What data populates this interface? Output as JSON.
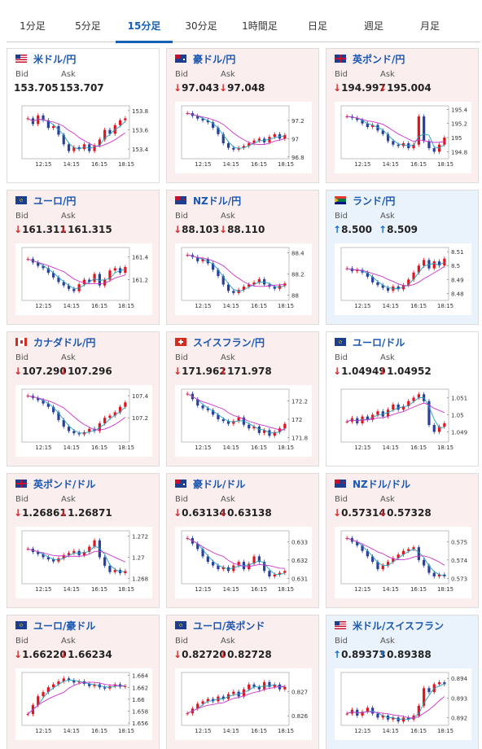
{
  "tabs": [
    {
      "label": "1分足",
      "active": false
    },
    {
      "label": "5分足",
      "active": false
    },
    {
      "label": "15分足",
      "active": true
    },
    {
      "label": "30分足",
      "active": false
    },
    {
      "label": "1時間足",
      "active": false
    },
    {
      "label": "日足",
      "active": false
    },
    {
      "label": "週足",
      "active": false
    },
    {
      "label": "月足",
      "active": false
    }
  ],
  "labels": {
    "bid": "Bid",
    "ask": "Ask"
  },
  "colors": {
    "up_candle": "#2a3f9c",
    "down_candle": "#e0141e",
    "ma_long": "#cc33cc",
    "ma_short": "#20a0c0",
    "arrow_down": "#d32c2c",
    "arrow_up": "#1d6fc5",
    "pair_text": "#1a57b0"
  },
  "cards": [
    {
      "pair": "米ドル/円",
      "flag": "us-jp",
      "bid": "153.705",
      "ask": "153.707",
      "dir": "none",
      "bg": "plain",
      "chart_data": {
        "type": "candlestick",
        "x_ticks": [
          "12:15",
          "14:15",
          "16:15",
          "18:15"
        ],
        "y_ticks": [
          "153.8",
          "153.6",
          "153.4"
        ],
        "ylim": [
          153.3,
          153.85
        ],
        "close": [
          153.72,
          153.66,
          153.75,
          153.7,
          153.62,
          153.64,
          153.55,
          153.45,
          153.38,
          153.42,
          153.4,
          153.45,
          153.38,
          153.44,
          153.5,
          153.6,
          153.56,
          153.65,
          153.7,
          153.72
        ]
      }
    },
    {
      "pair": "豪ドル/円",
      "flag": "au-jp",
      "bid": "97.043",
      "ask": "97.048",
      "dir": "down",
      "bg": "down",
      "chart_data": {
        "type": "candlestick",
        "x_ticks": [
          "12:15",
          "14:15",
          "16:15",
          "18:15"
        ],
        "y_ticks": [
          "97.2",
          "97",
          "96.8"
        ],
        "ylim": [
          96.78,
          97.36
        ],
        "close": [
          97.28,
          97.25,
          97.22,
          97.2,
          97.18,
          97.12,
          97.05,
          96.95,
          96.9,
          96.88,
          96.9,
          96.92,
          96.95,
          96.98,
          97.0,
          96.96,
          97.02,
          97.05,
          97.0,
          97.04
        ]
      }
    },
    {
      "pair": "英ポンド/円",
      "flag": "gb-jp",
      "bid": "194.997",
      "ask": "195.004",
      "dir": "down",
      "bg": "down",
      "chart_data": {
        "type": "candlestick",
        "x_ticks": [
          "12:15",
          "14:15",
          "16:15",
          "18:15"
        ],
        "y_ticks": [
          "195.4",
          "195.2",
          "195",
          "194.8"
        ],
        "ylim": [
          194.7,
          195.45
        ],
        "close": [
          195.3,
          195.28,
          195.25,
          195.2,
          195.15,
          195.18,
          195.1,
          195.05,
          194.95,
          194.9,
          194.88,
          194.92,
          194.85,
          194.9,
          195.3,
          194.95,
          194.85,
          194.8,
          194.9,
          195.0
        ]
      }
    },
    {
      "pair": "ユーロ/円",
      "flag": "eu-jp",
      "bid": "161.311",
      "ask": "161.315",
      "dir": "down",
      "bg": "down",
      "chart_data": {
        "type": "candlestick",
        "x_ticks": [
          "12:15",
          "14:15",
          "16:15",
          "18:15"
        ],
        "y_ticks": [
          "161.4",
          "161.2"
        ],
        "ylim": [
          161.02,
          161.48
        ],
        "close": [
          161.38,
          161.35,
          161.32,
          161.3,
          161.26,
          161.22,
          161.18,
          161.15,
          161.12,
          161.1,
          161.16,
          161.2,
          161.18,
          161.25,
          161.15,
          161.2,
          161.28,
          161.3,
          161.26,
          161.31
        ]
      }
    },
    {
      "pair": "NZドル/円",
      "flag": "nz-jp",
      "bid": "88.103",
      "ask": "88.110",
      "dir": "down",
      "bg": "down",
      "chart_data": {
        "type": "candlestick",
        "x_ticks": [
          "12:15",
          "14:15",
          "16:15",
          "18:15"
        ],
        "y_ticks": [
          "88.4",
          "88.2",
          "88"
        ],
        "ylim": [
          87.95,
          88.45
        ],
        "close": [
          88.38,
          88.36,
          88.32,
          88.34,
          88.3,
          88.24,
          88.18,
          88.1,
          88.04,
          88.02,
          88.05,
          88.08,
          88.1,
          88.12,
          88.15,
          88.1,
          88.08,
          88.06,
          88.09,
          88.11
        ]
      }
    },
    {
      "pair": "ランド/円",
      "flag": "za-jp",
      "bid": "8.500",
      "ask": "8.509",
      "dir": "up",
      "bg": "up",
      "chart_data": {
        "type": "candlestick",
        "x_ticks": [
          "12:15",
          "14:15",
          "16:15",
          "18:15"
        ],
        "y_ticks": [
          "8.51",
          "8.5",
          "8.49",
          "8.48"
        ],
        "ylim": [
          8.475,
          8.513
        ],
        "close": [
          8.498,
          8.496,
          8.497,
          8.495,
          8.492,
          8.488,
          8.486,
          8.484,
          8.482,
          8.485,
          8.483,
          8.486,
          8.49,
          8.495,
          8.5,
          8.504,
          8.498,
          8.503,
          8.5,
          8.505
        ]
      }
    },
    {
      "pair": "カナダドル/円",
      "flag": "ca-jp",
      "bid": "107.290",
      "ask": "107.296",
      "dir": "down",
      "bg": "down",
      "chart_data": {
        "type": "candlestick",
        "x_ticks": [
          "12:15",
          "14:15",
          "16:15",
          "18:15"
        ],
        "y_ticks": [
          "107.4",
          "107.2"
        ],
        "ylim": [
          106.98,
          107.46
        ],
        "close": [
          107.4,
          107.38,
          107.36,
          107.33,
          107.3,
          107.25,
          107.18,
          107.12,
          107.08,
          107.06,
          107.05,
          107.07,
          107.1,
          107.08,
          107.15,
          107.2,
          107.22,
          107.25,
          107.3,
          107.34
        ]
      }
    },
    {
      "pair": "スイスフラン/円",
      "flag": "ch-jp",
      "bid": "171.962",
      "ask": "171.978",
      "dir": "down",
      "bg": "down",
      "chart_data": {
        "type": "candlestick",
        "x_ticks": [
          "12:15",
          "14:15",
          "16:15",
          "18:15"
        ],
        "y_ticks": [
          "172.2",
          "172",
          "171.8"
        ],
        "ylim": [
          171.75,
          172.33
        ],
        "close": [
          172.28,
          172.22,
          172.15,
          172.12,
          172.1,
          172.05,
          172.0,
          171.98,
          171.95,
          171.98,
          172.02,
          171.94,
          171.9,
          171.92,
          171.85,
          171.88,
          171.82,
          171.86,
          171.9,
          171.95
        ]
      }
    },
    {
      "pair": "ユーロ/ドル",
      "flag": "eu-us",
      "bid": "1.04949",
      "ask": "1.04952",
      "dir": "down",
      "bg": "plain",
      "chart_data": {
        "type": "candlestick",
        "x_ticks": [
          "12:15",
          "14:15",
          "16:15",
          "18:15"
        ],
        "y_ticks": [
          "1.051",
          "1.05",
          "1.049"
        ],
        "ylim": [
          1.0484,
          1.0515
        ],
        "close": [
          1.0496,
          1.0498,
          1.0495,
          1.0499,
          1.0497,
          1.05,
          1.0502,
          1.0499,
          1.0503,
          1.0506,
          1.0503,
          1.0505,
          1.0508,
          1.051,
          1.0512,
          1.0508,
          1.0494,
          1.049,
          1.0493,
          1.0495
        ]
      }
    },
    {
      "pair": "英ポンド/ドル",
      "flag": "gb-us",
      "bid": "1.26861",
      "ask": "1.26871",
      "dir": "down",
      "bg": "down",
      "chart_data": {
        "type": "candlestick",
        "x_ticks": [
          "12:15",
          "14:15",
          "16:15",
          "18:15"
        ],
        "y_ticks": [
          "1.272",
          "1.27",
          "1.268"
        ],
        "ylim": [
          1.2675,
          1.2725
        ],
        "close": [
          1.2708,
          1.2705,
          1.2703,
          1.27,
          1.2698,
          1.2696,
          1.2699,
          1.2702,
          1.2704,
          1.2706,
          1.2702,
          1.2705,
          1.271,
          1.2716,
          1.27,
          1.2692,
          1.2686,
          1.2688,
          1.2685,
          1.2687
        ]
      }
    },
    {
      "pair": "豪ドル/ドル",
      "flag": "au-us",
      "bid": "0.63134",
      "ask": "0.63138",
      "dir": "down",
      "bg": "down",
      "chart_data": {
        "type": "candlestick",
        "x_ticks": [
          "12:15",
          "14:15",
          "16:15",
          "18:15"
        ],
        "y_ticks": [
          "0.633",
          "0.632",
          "0.631"
        ],
        "ylim": [
          0.6307,
          0.6336
        ],
        "close": [
          0.6332,
          0.6329,
          0.6326,
          0.6322,
          0.6319,
          0.6317,
          0.6315,
          0.6316,
          0.6314,
          0.6317,
          0.6319,
          0.6315,
          0.6318,
          0.6322,
          0.6319,
          0.6314,
          0.6311,
          0.6312,
          0.6313,
          0.6314
        ]
      }
    },
    {
      "pair": "NZドル/ドル",
      "flag": "nz-us",
      "bid": "0.57314",
      "ask": "0.57328",
      "dir": "down",
      "bg": "down",
      "chart_data": {
        "type": "candlestick",
        "x_ticks": [
          "12:15",
          "14:15",
          "16:15",
          "18:15"
        ],
        "y_ticks": [
          "0.575",
          "0.574",
          "0.573"
        ],
        "ylim": [
          0.5727,
          0.5756
        ],
        "close": [
          0.5752,
          0.575,
          0.5748,
          0.5745,
          0.5742,
          0.5739,
          0.5735,
          0.5737,
          0.5739,
          0.5741,
          0.5743,
          0.5745,
          0.5746,
          0.5747,
          0.574,
          0.5737,
          0.5733,
          0.5731,
          0.5732,
          0.5731
        ]
      }
    },
    {
      "pair": "ユーロ/豪ドル",
      "flag": "eu-au",
      "bid": "1.66220",
      "ask": "1.66234",
      "dir": "down",
      "bg": "down",
      "chart_data": {
        "type": "candlestick",
        "x_ticks": [
          "12:15",
          "14:15",
          "16:15",
          "18:15"
        ],
        "y_ticks": [
          "1.664",
          "1.662",
          "1.66",
          "1.658",
          "1.656"
        ],
        "ylim": [
          1.6556,
          1.6645
        ],
        "close": [
          1.6575,
          1.659,
          1.6605,
          1.6612,
          1.662,
          1.6625,
          1.663,
          1.6635,
          1.6632,
          1.6628,
          1.663,
          1.6626,
          1.6622,
          1.6625,
          1.662,
          1.6618,
          1.6622,
          1.6625,
          1.6621,
          1.6622
        ]
      }
    },
    {
      "pair": "ユーロ/英ポンド",
      "flag": "eu-gb",
      "bid": "0.82720",
      "ask": "0.82728",
      "dir": "down",
      "bg": "down",
      "chart_data": {
        "type": "candlestick",
        "x_ticks": [
          "12:15",
          "14:15",
          "16:15",
          "18:15"
        ],
        "y_ticks": [
          "0.827",
          "0.826"
        ],
        "ylim": [
          0.8256,
          0.8278
        ],
        "close": [
          0.8261,
          0.8263,
          0.8265,
          0.8266,
          0.8267,
          0.8266,
          0.8268,
          0.8267,
          0.8269,
          0.827,
          0.8268,
          0.8271,
          0.8273,
          0.8272,
          0.8271,
          0.8274,
          0.8272,
          0.8273,
          0.8271,
          0.8272
        ]
      }
    },
    {
      "pair": "米ドル/スイスフラン",
      "flag": "us-ch",
      "bid": "0.89373",
      "ask": "0.89388",
      "dir": "up",
      "bg": "up",
      "chart_data": {
        "type": "candlestick",
        "x_ticks": [
          "12:15",
          "14:15",
          "16:15",
          "18:15"
        ],
        "y_ticks": [
          "0.894",
          "0.893",
          "0.892"
        ],
        "ylim": [
          0.8916,
          0.8943
        ],
        "close": [
          0.8922,
          0.8924,
          0.8921,
          0.8923,
          0.8925,
          0.8922,
          0.892,
          0.8921,
          0.8919,
          0.892,
          0.8918,
          0.892,
          0.8919,
          0.8921,
          0.8926,
          0.8935,
          0.8933,
          0.8937,
          0.8938,
          0.8937
        ]
      }
    }
  ]
}
